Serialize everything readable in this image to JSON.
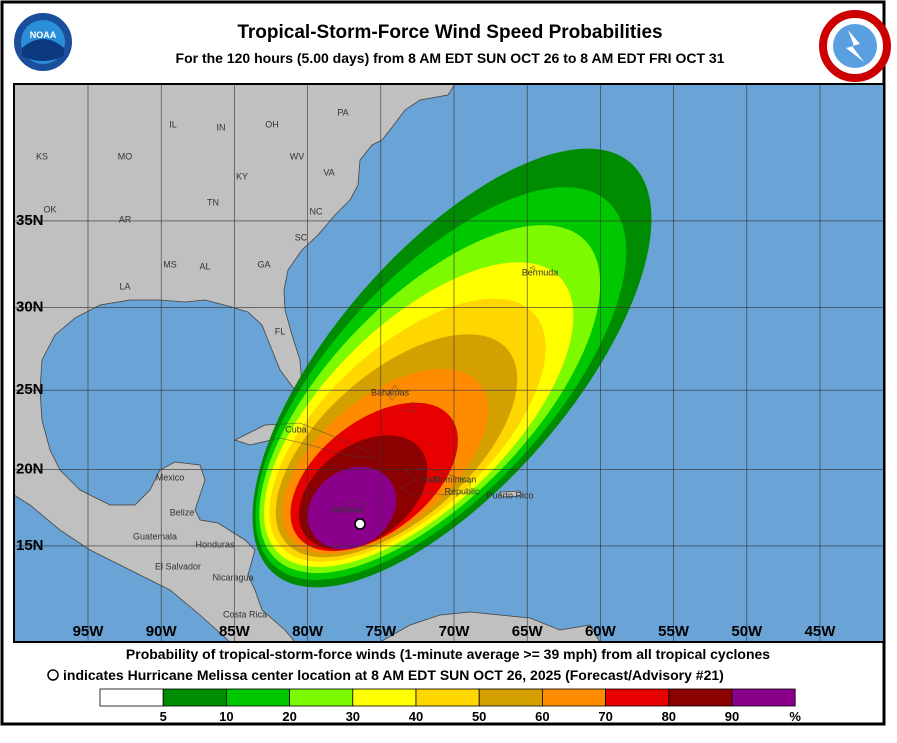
{
  "header": {
    "title": "Tropical-Storm-Force Wind Speed Probabilities",
    "subtitle": "For the 120 hours (5.00 days) from 8 AM EDT SUN OCT 26 to 8 AM EDT FRI OCT 31",
    "noaa_logo": "NOAA"
  },
  "map": {
    "latitudes": [
      {
        "value": 35,
        "label": "35N"
      },
      {
        "value": 30,
        "label": "30N"
      },
      {
        "value": 25,
        "label": "25N"
      },
      {
        "value": 20,
        "label": "20N"
      },
      {
        "value": 15,
        "label": "15N"
      }
    ],
    "longitudes": [
      {
        "value": -95,
        "label": "95W"
      },
      {
        "value": -90,
        "label": "90W"
      },
      {
        "value": -85,
        "label": "85W"
      },
      {
        "value": -80,
        "label": "80W"
      },
      {
        "value": -75,
        "label": "75W"
      },
      {
        "value": -70,
        "label": "70W"
      },
      {
        "value": -65,
        "label": "65W"
      },
      {
        "value": -60,
        "label": "60W"
      },
      {
        "value": -55,
        "label": "55W"
      },
      {
        "value": -50,
        "label": "50W"
      },
      {
        "value": -45,
        "label": "45W"
      }
    ],
    "places": [
      "KS",
      "MO",
      "IL",
      "IN",
      "OH",
      "PA",
      "WV",
      "VA",
      "KY",
      "TN",
      "NC",
      "SC",
      "OK",
      "AR",
      "MS",
      "AL",
      "GA",
      "LA",
      "FL",
      "Bermuda",
      "Bahamas",
      "Cuba",
      "Mexico",
      "Belize",
      "Guatemala",
      "Honduras",
      "El Salvador",
      "Nicaragua",
      "Costa Rica",
      "Jamaica",
      "Haiti",
      "Dominican",
      "Republic",
      "Puerto Rico"
    ]
  },
  "caption": {
    "line1": "Probability of tropical-storm-force winds (1-minute average >= 39 mph) from all tropical cyclones",
    "line2": "indicates Hurricane Melissa center location at 8 AM EDT SUN OCT 26, 2025 (Forecast/Advisory #21)"
  },
  "legend": {
    "colors": [
      "#ffffff",
      "#008c00",
      "#00c800",
      "#7dfa00",
      "#ffff00",
      "#ffd700",
      "#d4a000",
      "#ff8c00",
      "#e60000",
      "#8b0000",
      "#8b008b"
    ],
    "thresholds": [
      5,
      10,
      20,
      30,
      40,
      50,
      60,
      70,
      80,
      90
    ],
    "unit": "%"
  }
}
